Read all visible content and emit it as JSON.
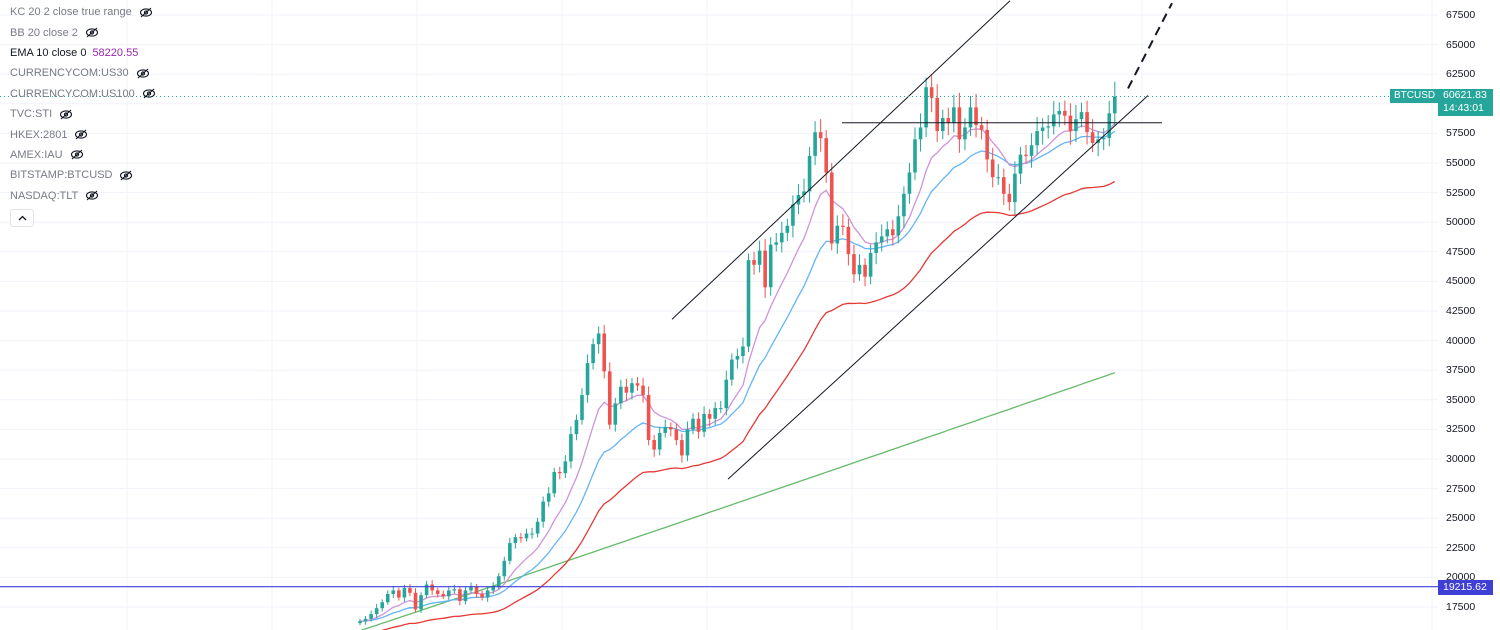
{
  "legend": {
    "rows": [
      {
        "label": "KC 20 2 close true range",
        "value": "",
        "active": false
      },
      {
        "label": "BB 20 close 2",
        "value": "",
        "active": false
      },
      {
        "label": "EMA 10 close 0",
        "value": "58220.55",
        "active": true,
        "value_color": "#9c27b0"
      },
      {
        "label": "CURRENCYCOM:US30",
        "value": "",
        "active": false
      },
      {
        "label": "CURRENCYCOM:US100",
        "value": "",
        "active": false
      },
      {
        "label": "TVC:STI",
        "value": "",
        "active": false
      },
      {
        "label": "HKEX:2801",
        "value": "",
        "active": false
      },
      {
        "label": "AMEX:IAU",
        "value": "",
        "active": false
      },
      {
        "label": "BITSTAMP:BTCUSD",
        "value": "",
        "active": false
      },
      {
        "label": "NASDAQ:TLT",
        "value": "",
        "active": false
      }
    ],
    "collapse_icon": "chevron-up-icon",
    "hidden_icon": "eye-crossed-icon"
  },
  "price_axis": {
    "ticks": [
      "67500",
      "65000",
      "62500",
      "60000",
      "57500",
      "55000",
      "52500",
      "50000",
      "47500",
      "45000",
      "42500",
      "40000",
      "37500",
      "35000",
      "32500",
      "30000",
      "27500",
      "25000",
      "22500",
      "20000",
      "17500"
    ]
  },
  "symbol_tag": "BTCUSD",
  "last_price": {
    "value": "60621.83",
    "countdown": "14:43:01",
    "color": "#26a69a"
  },
  "level_line": {
    "value": "19215.62",
    "color": "#3f3fd8"
  },
  "colors": {
    "up": "#26a69a",
    "down": "#ef5350",
    "ema10": "#ce93d8",
    "ema20": "#64b5f6",
    "ma50": "#e53935",
    "ma200": "#66bb6a"
  },
  "chart_data": {
    "type": "candlestick",
    "ylim": [
      16500,
      68500
    ],
    "last_price": 60621.83,
    "horizontal_level": 19215.62,
    "close_series": [
      16300,
      16500,
      16900,
      17400,
      17900,
      18600,
      18900,
      18300,
      19100,
      18700,
      17300,
      18500,
      19400,
      18900,
      18600,
      18400,
      18900,
      19000,
      18000,
      18900,
      19200,
      18600,
      18300,
      18900,
      19200,
      20100,
      21400,
      22900,
      23400,
      23300,
      23700,
      23700,
      24700,
      26400,
      27100,
      28900,
      28800,
      29800,
      32100,
      33300,
      35400,
      38100,
      39700,
      40600,
      37400,
      32900,
      34700,
      36100,
      35600,
      36400,
      36200,
      35400,
      31600,
      30800,
      32200,
      32700,
      32500,
      31600,
      30300,
      32500,
      33400,
      32300,
      33800,
      33400,
      34300,
      34300,
      36700,
      38400,
      38700,
      39500,
      46800,
      46400,
      47600,
      44500,
      48100,
      48300,
      49100,
      49700,
      51500,
      52300,
      52600,
      55600,
      57600,
      57100,
      54200,
      48200,
      49700,
      49600,
      47300,
      45600,
      46400,
      45400,
      47400,
      48300,
      48800,
      49400,
      48900,
      50500,
      52400,
      54200,
      57000,
      58000,
      61400,
      60500,
      57700,
      58800,
      58400,
      59700,
      57000,
      58000,
      59700,
      58200,
      57800,
      55300,
      53800,
      53800,
      52400,
      51700,
      54100,
      55700,
      55600,
      56500,
      57700,
      58000,
      58100,
      59100,
      59400,
      59000,
      57700,
      58700,
      59300,
      57600,
      56700,
      57000,
      57100,
      59200,
      60621.83
    ],
    "x_start": 360,
    "x_step": 5.55,
    "trendlines": [
      {
        "name": "upper-channel",
        "from": [
          672,
          41800
        ],
        "to": [
          1010,
          68700
        ]
      },
      {
        "name": "lower-channel",
        "from": [
          728,
          28300
        ],
        "to": [
          1148,
          60700
        ]
      },
      {
        "name": "resistance",
        "from": [
          842,
          58400
        ],
        "to": [
          1162,
          58400
        ]
      },
      {
        "name": "projection",
        "from": [
          1128,
          61300
        ],
        "to": [
          1172,
          68500
        ],
        "dashed": true
      }
    ]
  }
}
